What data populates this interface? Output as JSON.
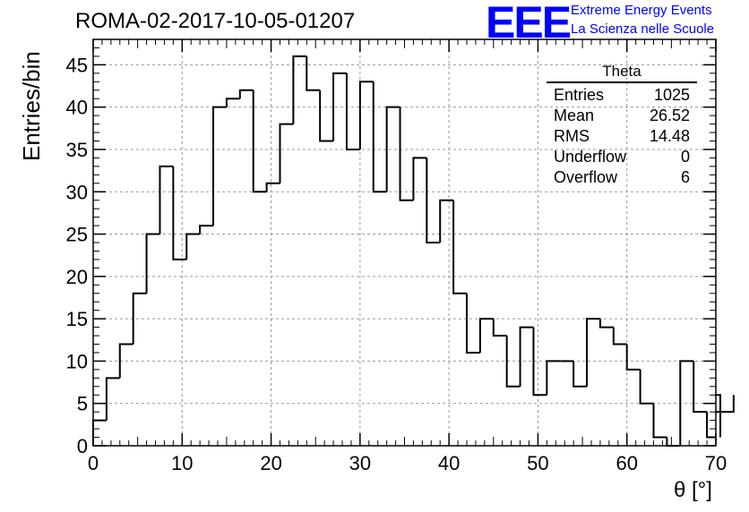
{
  "header": {
    "run_title": "ROMA-02-2017-10-05-01207",
    "logo_text": "EEE",
    "logo_line1": "Extreme Energy Events",
    "logo_line2": "La Scienza nelle Scuole"
  },
  "stats": {
    "title": "Theta",
    "rows": [
      {
        "label": "Entries",
        "value": "1025"
      },
      {
        "label": "Mean",
        "value": "26.52"
      },
      {
        "label": "RMS",
        "value": "14.48"
      },
      {
        "label": "Underflow",
        "value": "0"
      },
      {
        "label": "Overflow",
        "value": "6"
      }
    ]
  },
  "chart_data": {
    "type": "bar",
    "title": "ROMA-02-2017-10-05-01207",
    "xlabel": "θ [°]",
    "ylabel": "Entries/bin",
    "xlim": [
      0,
      70
    ],
    "ylim": [
      0,
      48
    ],
    "bin_width": 1.5,
    "x_ticks": [
      0,
      10,
      20,
      30,
      40,
      50,
      60,
      70
    ],
    "y_ticks": [
      0,
      5,
      10,
      15,
      20,
      25,
      30,
      35,
      40,
      45
    ],
    "grid": true,
    "legend": "top-right",
    "values": [
      3,
      8,
      12,
      18,
      25,
      33,
      22,
      25,
      26,
      40,
      41,
      42,
      30,
      31,
      38,
      46,
      42,
      36,
      44,
      35,
      43,
      30,
      40,
      29,
      34,
      24,
      29,
      18,
      11,
      15,
      13,
      7,
      14,
      6,
      10,
      10,
      7,
      15,
      14,
      12,
      9,
      5,
      1,
      0,
      10,
      4,
      1,
      6,
      4
    ],
    "line_color": "#000000"
  }
}
